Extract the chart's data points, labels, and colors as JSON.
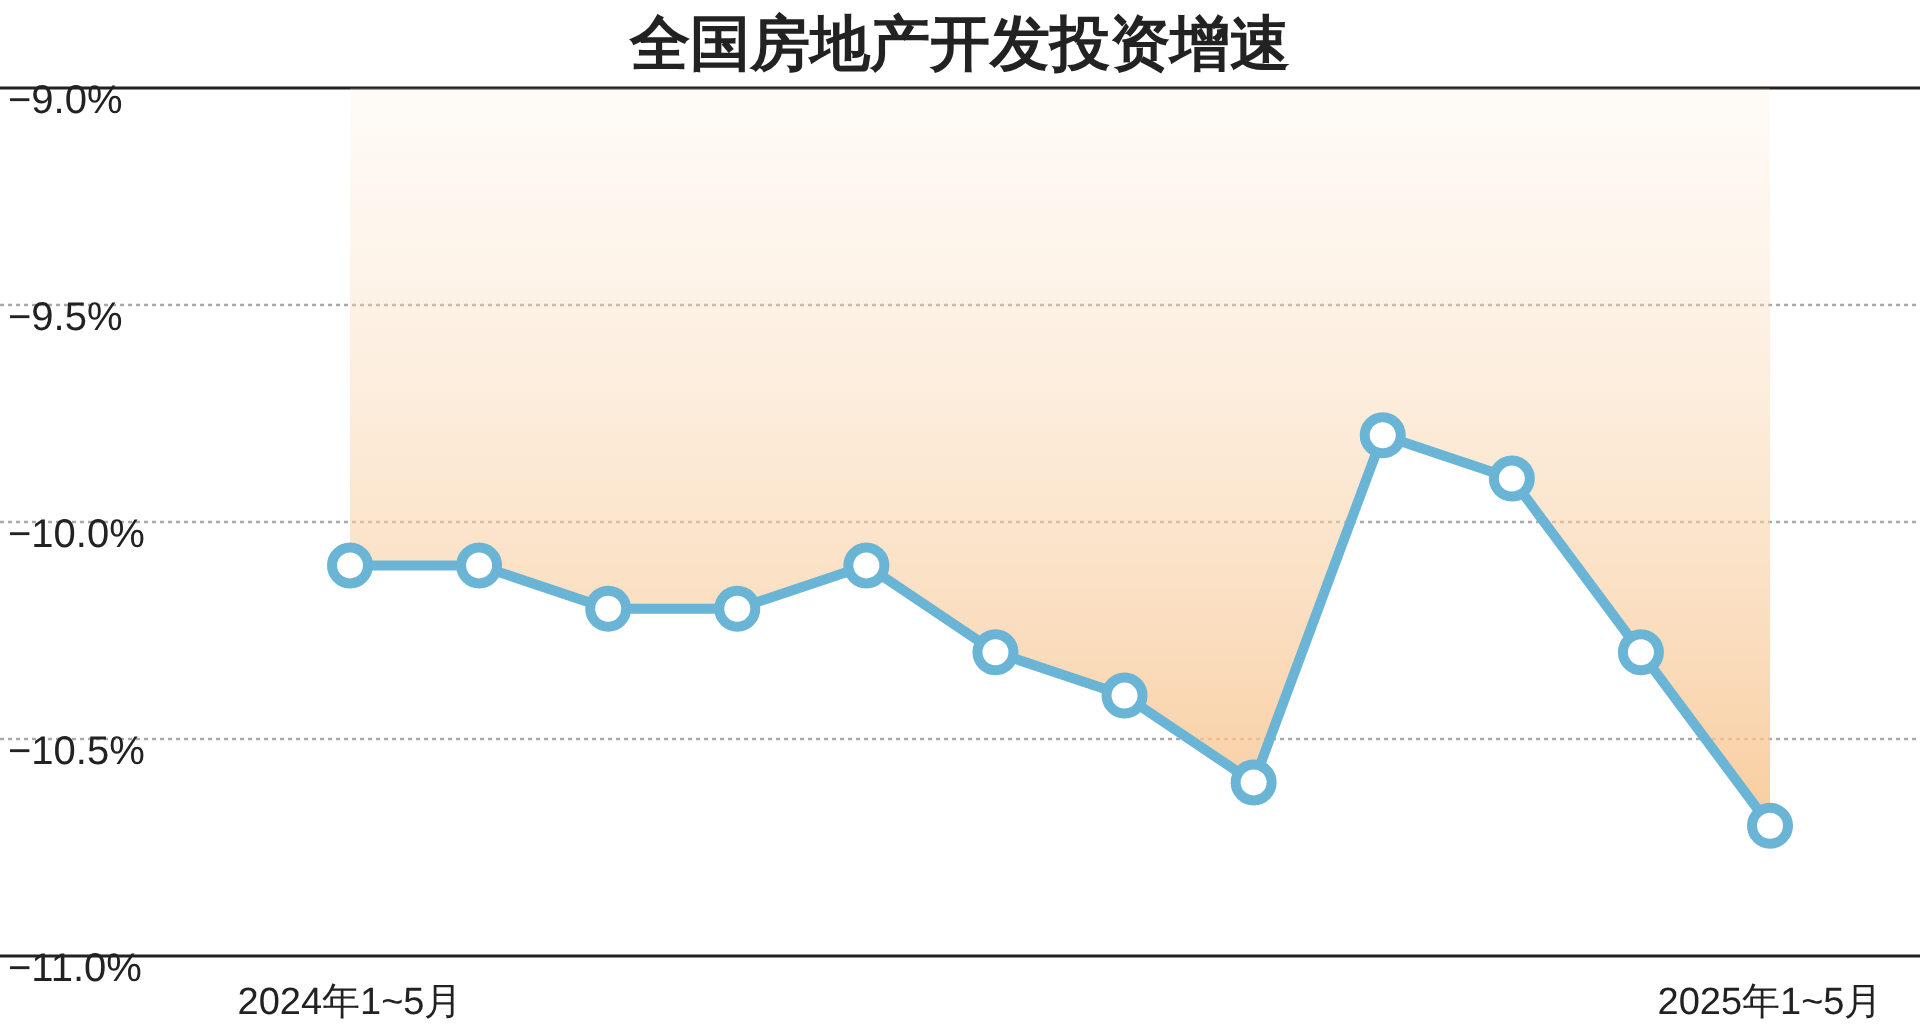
{
  "chart_data": {
    "type": "line",
    "title": "全国房地产开发投资增速",
    "categories": [
      "2024年1~5月",
      null,
      null,
      null,
      null,
      null,
      null,
      null,
      null,
      null,
      null,
      "2025年1~5月"
    ],
    "series": [
      {
        "color": "#6ab4d6",
        "values": [
          -10.1,
          -10.1,
          -10.2,
          -10.2,
          -10.1,
          -10.3,
          -10.4,
          -10.6,
          -9.8,
          -9.9,
          -10.3,
          -10.7
        ],
        "lower": [
          -10.1,
          -10.1,
          -10.2,
          -10.2,
          -10.1,
          -10.3,
          -10.4,
          -10.6,
          -9.8,
          -9.9,
          -10.3,
          -10.7
        ],
        "upper": [
          -9,
          -9,
          -9,
          -9,
          -9,
          -9,
          -9,
          -9,
          -9,
          -9,
          -9,
          -9
        ]
      }
    ],
    "ylim": [
      -11,
      -9
    ],
    "yticks": [
      {
        "value": -11,
        "label": "−11.0%"
      },
      {
        "value": -10.5,
        "label": "−10.5%"
      },
      {
        "value": -10,
        "label": "−10.0%"
      },
      {
        "value": -9.5,
        "label": "−9.5%"
      },
      {
        "value": -9,
        "label": "−9.0%"
      }
    ],
    "grid": "y",
    "marker": "circle",
    "line_style": "solid"
  }
}
